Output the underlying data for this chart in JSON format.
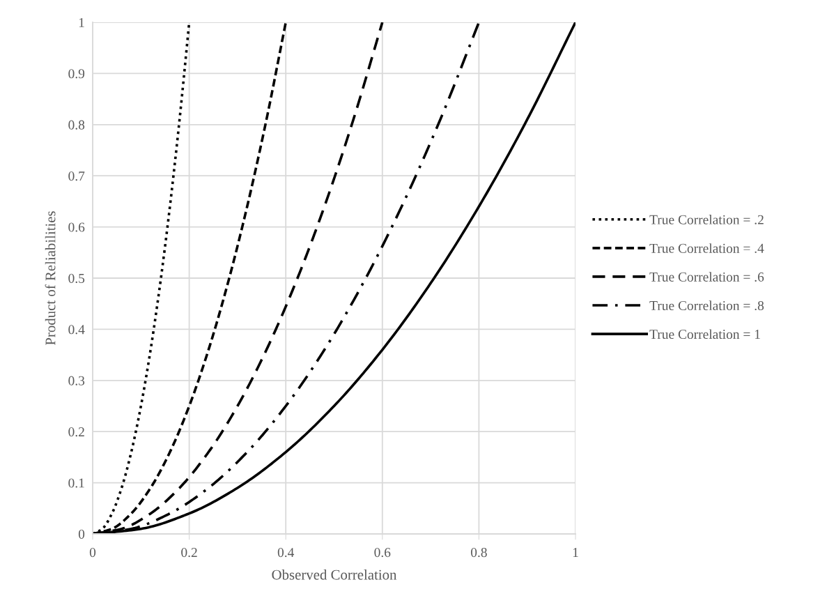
{
  "chart_data": {
    "type": "line",
    "xlabel": "Observed Correlation",
    "ylabel": "Product of Reliabilities",
    "xlim": [
      0,
      1
    ],
    "xticks": [
      0,
      0.2,
      0.4,
      0.6,
      0.8,
      1
    ],
    "ylim": [
      0,
      1
    ],
    "yticks": [
      0,
      0.1,
      0.2,
      0.3,
      0.4,
      0.5,
      0.6,
      0.7,
      0.8,
      0.9,
      1
    ],
    "grid": true,
    "legend": "right",
    "marker": "none",
    "series": [
      {
        "name": "True Correlation = .2",
        "color": "#000000",
        "line_style": "dotted",
        "x": [
          0,
          0.02,
          0.04,
          0.06,
          0.08,
          0.1,
          0.12,
          0.14,
          0.16,
          0.18,
          0.2
        ],
        "values": [
          0,
          0.01,
          0.04,
          0.09,
          0.16,
          0.25,
          0.36,
          0.49,
          0.64,
          0.81,
          1
        ]
      },
      {
        "name": "True Correlation = .4",
        "color": "#000000",
        "line_style": "dashed",
        "x": [
          0,
          0.04,
          0.08,
          0.12,
          0.16,
          0.2,
          0.24,
          0.28,
          0.32,
          0.36,
          0.4
        ],
        "values": [
          0,
          0.01,
          0.04,
          0.09,
          0.16,
          0.25,
          0.36,
          0.49,
          0.64,
          0.81,
          1
        ]
      },
      {
        "name": "True Correlation = .6",
        "color": "#000000",
        "line_style": "longdash",
        "x": [
          0,
          0.06,
          0.12,
          0.18,
          0.24,
          0.3,
          0.36,
          0.42,
          0.48,
          0.54,
          0.6
        ],
        "values": [
          0,
          0.01,
          0.04,
          0.09,
          0.16,
          0.25,
          0.36,
          0.49,
          0.64,
          0.81,
          1
        ]
      },
      {
        "name": "True Correlation = .8",
        "color": "#000000",
        "line_style": "dashdot",
        "x": [
          0,
          0.08,
          0.16,
          0.24,
          0.32,
          0.4,
          0.48,
          0.56,
          0.64,
          0.72,
          0.8
        ],
        "values": [
          0,
          0.01,
          0.04,
          0.09,
          0.16,
          0.25,
          0.36,
          0.49,
          0.64,
          0.81,
          1
        ]
      },
      {
        "name": "True Correlation = 1",
        "color": "#000000",
        "line_style": "solid",
        "x": [
          0,
          0.1,
          0.2,
          0.3,
          0.4,
          0.5,
          0.6,
          0.7,
          0.8,
          0.9,
          1
        ],
        "values": [
          0,
          0.01,
          0.04,
          0.09,
          0.16,
          0.25,
          0.36,
          0.49,
          0.64,
          0.81,
          1
        ]
      }
    ]
  }
}
